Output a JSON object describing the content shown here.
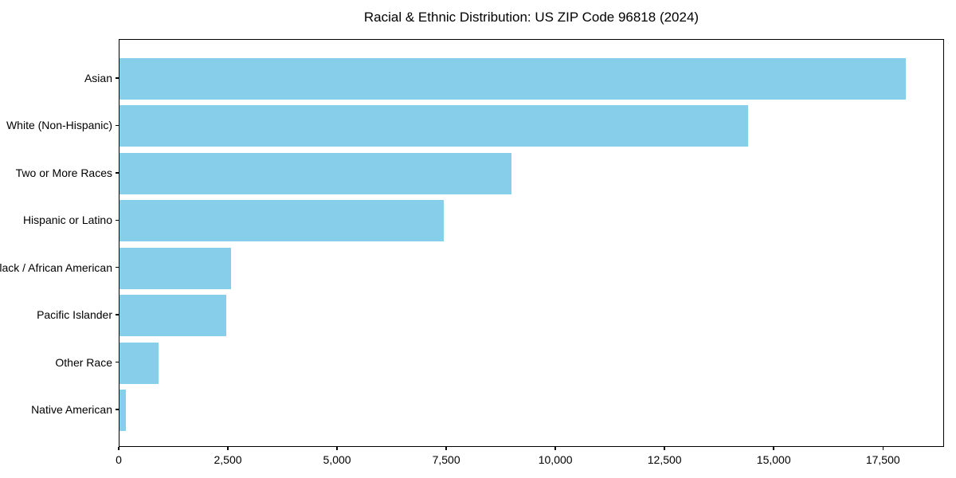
{
  "chart_data": {
    "type": "bar",
    "orientation": "horizontal",
    "title": "Racial & Ethnic Distribution: US ZIP Code 96818 (2024)",
    "categories": [
      "Asian",
      "White (Non-Hispanic)",
      "Two or More Races",
      "Hispanic or Latino",
      "Black / African American",
      "Pacific Islander",
      "Other Race",
      "Native American"
    ],
    "values": [
      18000,
      14400,
      8970,
      7430,
      2560,
      2440,
      890,
      140
    ],
    "xlabel": "",
    "ylabel": "",
    "xlim": [
      0,
      18900
    ],
    "x_ticks": [
      0,
      2500,
      5000,
      7500,
      10000,
      12500,
      15000,
      17500
    ],
    "x_tick_labels": [
      "0",
      "2,500",
      "5,000",
      "7,500",
      "10,000",
      "12,500",
      "15,000",
      "17,500"
    ],
    "bar_color": "#87CEEB",
    "text_color": "#000000",
    "background_color": "#FFFFFF",
    "grid": false,
    "legend": null
  }
}
